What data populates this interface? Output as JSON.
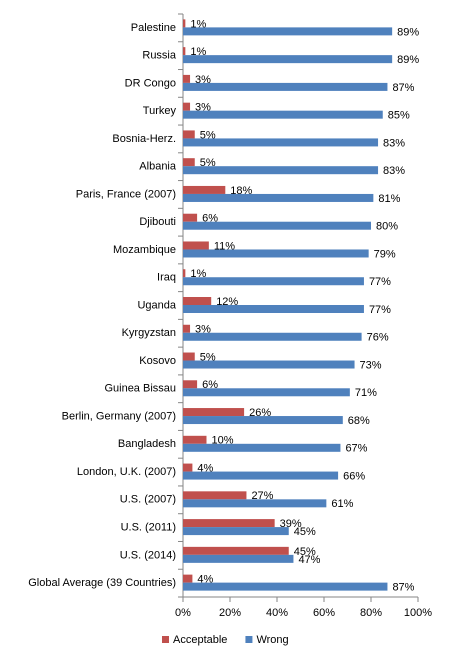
{
  "chart_data": {
    "type": "bar",
    "orientation": "horizontal",
    "categories": [
      "Palestine",
      "Russia",
      "DR Congo",
      "Turkey",
      "Bosnia-Herz.",
      "Albania",
      "Paris, France (2007)",
      "Djibouti",
      "Mozambique",
      "Iraq",
      "Uganda",
      "Kyrgyzstan",
      "Kosovo",
      "Guinea Bissau",
      "Berlin, Germany (2007)",
      "Bangladesh",
      "London, U.K. (2007)",
      "U.S. (2007)",
      "U.S. (2011)",
      "U.S. (2014)",
      "Global Average (39 Countries)"
    ],
    "series": [
      {
        "name": "Acceptable",
        "color": "#c0504d",
        "values": [
          1,
          1,
          3,
          3,
          5,
          5,
          18,
          6,
          11,
          1,
          12,
          3,
          5,
          6,
          26,
          10,
          4,
          27,
          39,
          45,
          4
        ],
        "value_labels": [
          "1%",
          "1%",
          "3%",
          "3%",
          "5%",
          "5%",
          "18%",
          "6%",
          "11%",
          "1%",
          "12%",
          "3%",
          "5%",
          "6%",
          "26%",
          "10%",
          "4%",
          "27%",
          "39%",
          "45%",
          "4%"
        ]
      },
      {
        "name": "Wrong",
        "color": "#4f81bd",
        "values": [
          89,
          89,
          87,
          85,
          83,
          83,
          81,
          80,
          79,
          77,
          77,
          76,
          73,
          71,
          68,
          67,
          66,
          61,
          45,
          47,
          87
        ],
        "value_labels": [
          "89%",
          "89%",
          "87%",
          "85%",
          "83%",
          "83%",
          "81%",
          "80%",
          "79%",
          "77%",
          "77%",
          "76%",
          "73%",
          "71%",
          "68%",
          "67%",
          "66%",
          "61%",
          "45%",
          "47%",
          "87%"
        ]
      }
    ],
    "xlim": [
      0,
      100
    ],
    "xticks": [
      {
        "value": 0,
        "label": "0%"
      },
      {
        "value": 20,
        "label": "20%"
      },
      {
        "value": 40,
        "label": "40%"
      },
      {
        "value": 60,
        "label": "60%"
      },
      {
        "value": 80,
        "label": "80%"
      },
      {
        "value": 100,
        "label": "100%"
      }
    ],
    "legend": "bottom"
  }
}
